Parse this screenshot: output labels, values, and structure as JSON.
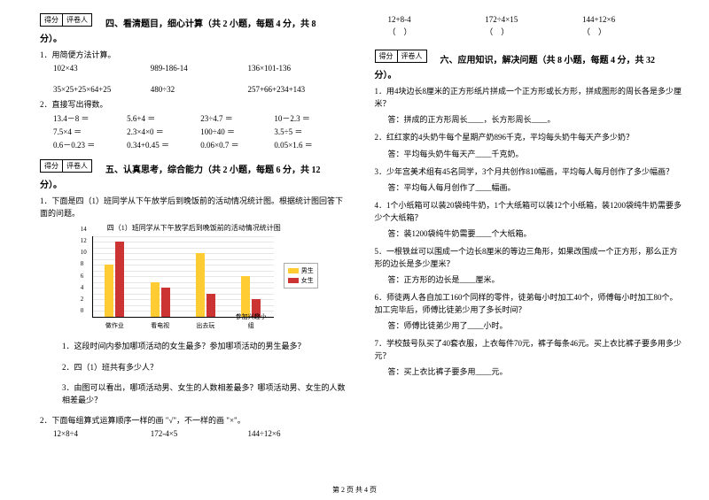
{
  "score_labels": {
    "score": "得分",
    "grader": "评卷人"
  },
  "sec4": {
    "title": "四、看清题目，细心计算（共 2 小题，每题 4 分，共 8",
    "cont": "分）。",
    "q1": "1．用简便方法计算。",
    "q1_items": [
      "102×43",
      "989-186-14",
      "136×101-136",
      "35×25+25×64+25",
      "480÷32",
      "257+66+234+143"
    ],
    "q2": "2．直接写出得数。",
    "q2_rows": [
      [
        "13.4－8 ＝",
        "5.6+4 ＝",
        "23÷4.7 ＝",
        "10－2.3 ＝"
      ],
      [
        "7.5×4 ＝",
        "2.3×4×0 ＝",
        "100÷40 ＝",
        "3.5÷5 ＝"
      ],
      [
        "0.6－0.23 ＝",
        "0.34+0.45 ＝",
        "0.06×0.7 ＝",
        "0.05×1.6 ＝"
      ]
    ]
  },
  "sec5": {
    "title": "五、认真思考，综合能力（共 2 小题，每题 6 分，共 12",
    "cont": "分）。",
    "q1": "1．下面是四（1）班同学从下午放学后到晚饭前的活动情况统计图。根据统计图回答下面的问题。",
    "chart_title": "四（1）班同学从下午放学后到晚饭前的活动情况统计图",
    "chart": {
      "ymax": 14,
      "ystep": 2,
      "categories": [
        "做作业",
        "看电视",
        "出去玩",
        "参加兴趣小组"
      ],
      "series": [
        {
          "name": "男生",
          "color": "#ffcc33",
          "values": [
            9,
            6,
            11,
            7
          ]
        },
        {
          "name": "女生",
          "color": "#cc3333",
          "values": [
            13,
            5,
            4,
            3
          ]
        }
      ]
    },
    "sub1": "1．这段时间内参加哪项活动的女生最多？参加哪项活动的男生最多？",
    "sub2": "2．四（1）班共有多少人？",
    "sub3": "3．由图可以看出，哪项活动男、女生的人数相差最多？哪项活动男、女生的人数相差最少？",
    "q2": "2．下面每组算式运算顺序一样的画 \"√\"，不一样的画 \"×\"。",
    "q2_row1": [
      "12×8÷4",
      "172-4×5",
      "144÷12×6"
    ]
  },
  "right_top": {
    "row1": [
      "12+8-4",
      "172÷4×15",
      "144+12×6"
    ],
    "row2": [
      "（　）",
      "（　）",
      "（　）"
    ]
  },
  "sec6": {
    "title": "六、应用知识，解决问题（共 8 小题，每题 4 分，共 32",
    "cont": "分）。",
    "q1": "1．用4块边长8厘米的正方形纸片拼成一个正方形或长方形，拼成图形的周长各是多少厘米？",
    "a1": "答：拼成的正方形周长____，长方形周长____。",
    "q2": "2．红红家的4头奶牛每个星期产奶896千克，平均每头奶牛每天产多少奶？",
    "a2": "答：平均每头奶牛每天产____千克奶。",
    "q3": "3．少年宫美术组有45名同学，3个月共创作810幅画，平均每人每月创作了多少幅画？",
    "a3": "答：平均每人每月创作了____幅画。",
    "q4": "4．1个小纸箱可以装20袋纯牛奶，1个大纸箱可以装12个小纸箱，装1200袋纯牛奶需要多少个大纸箱？",
    "a4": "答：装1200袋纯牛奶需要____个大纸箱。",
    "q5": "5．一根铁丝可以围成一个边长8厘米的等边三角形，如果改围成一个正方形，那么正方形的边长是多少厘米？",
    "a5": "答：正方形的边长是____厘米。",
    "q6": "6．师徒两人各自加工160个同样的零件，徒弟每小时加工40个，师傅每小时加工80个。加工完毕后，师傅比徒弟少用了多长时间？",
    "a6": "答：师傅比徒弟少用了____小时。",
    "q7": "7．学校鼓号队买了40套衣服，上衣每件70元，裤子每条46元。买上衣比裤子要多用多少元？",
    "a7": "答：买上衣比裤子要多用____元。"
  },
  "footer": "第 2 页 共 4 页"
}
